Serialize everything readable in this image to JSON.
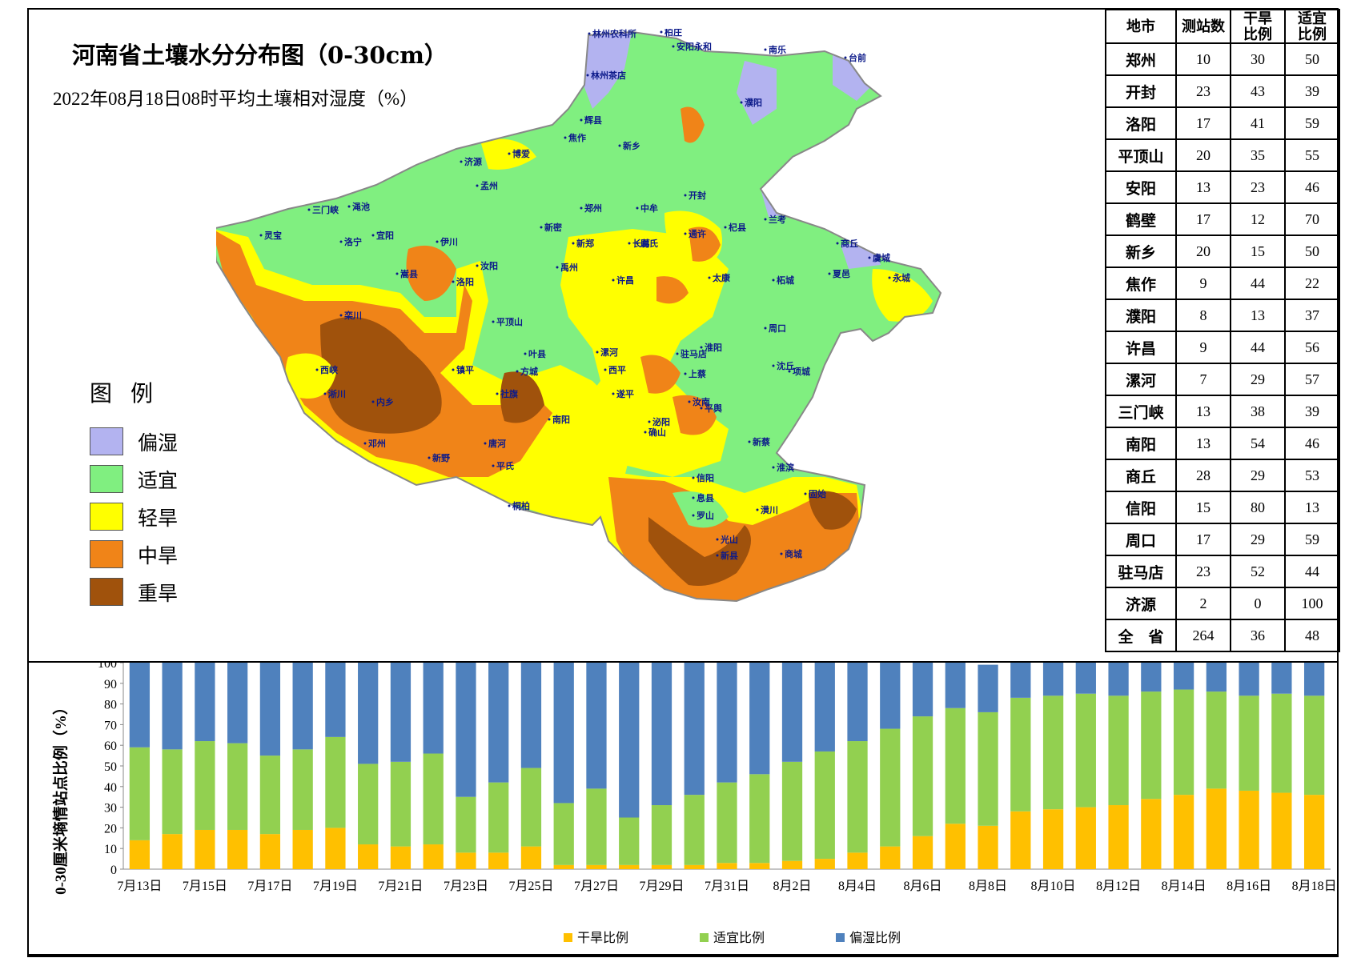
{
  "map": {
    "title": "河南省土壤水分分布图（0-30cm）",
    "subtitle": "2022年08月18日08时平均土壤相对湿度（%）"
  },
  "legend": {
    "title": "图 例",
    "items": [
      {
        "label": "偏湿",
        "color": "#b3b3f0"
      },
      {
        "label": "适宜",
        "color": "#80ef80"
      },
      {
        "label": "轻旱",
        "color": "#ffff00"
      },
      {
        "label": "中旱",
        "color": "#f08418"
      },
      {
        "label": "重旱",
        "color": "#a0520c"
      }
    ]
  },
  "places": [
    "林州农科所",
    "柏庄",
    "安阳永和",
    "南乐",
    "台前",
    "林州茶店",
    "濮阳",
    "辉县",
    "新乡",
    "焦作",
    "博爱",
    "济源",
    "孟州",
    "灵宝",
    "三门峡",
    "渑池",
    "洛宁",
    "宜阳",
    "伊川",
    "嵩县",
    "洛阳",
    "汝阳",
    "栾川",
    "西峡",
    "淅川",
    "内乡",
    "镇平",
    "邓州",
    "新野",
    "唐河",
    "南阳",
    "社旗",
    "方城",
    "叶县",
    "平顶山",
    "许昌",
    "漯河",
    "郑州",
    "新密",
    "新郑",
    "禹州",
    "长葛",
    "中牟",
    "开封",
    "尉氏",
    "通许",
    "杞县",
    "兰考",
    "商丘",
    "虞城",
    "永城",
    "夏邑",
    "柘城",
    "太康",
    "周口",
    "淮阳",
    "沈丘",
    "项城",
    "驻马店",
    "汝南",
    "平舆",
    "新蔡",
    "确山",
    "泌阳",
    "遂平",
    "西平",
    "上蔡",
    "信阳",
    "罗山",
    "光山",
    "新县",
    "商城",
    "固始",
    "潢川",
    "息县",
    "淮滨",
    "桐柏",
    "平氏"
  ],
  "table": {
    "headers": [
      "地市",
      "测站数",
      "干旱\n比例",
      "适宜\n比例"
    ],
    "rows": [
      [
        "郑州",
        "10",
        "30",
        "50"
      ],
      [
        "开封",
        "23",
        "43",
        "39"
      ],
      [
        "洛阳",
        "17",
        "41",
        "59"
      ],
      [
        "平顶山",
        "20",
        "35",
        "55"
      ],
      [
        "安阳",
        "13",
        "23",
        "46"
      ],
      [
        "鹤壁",
        "17",
        "12",
        "70"
      ],
      [
        "新乡",
        "20",
        "15",
        "50"
      ],
      [
        "焦作",
        "9",
        "44",
        "22"
      ],
      [
        "濮阳",
        "8",
        "13",
        "37"
      ],
      [
        "许昌",
        "9",
        "44",
        "56"
      ],
      [
        "漯河",
        "7",
        "29",
        "57"
      ],
      [
        "三门峡",
        "13",
        "38",
        "39"
      ],
      [
        "南阳",
        "13",
        "54",
        "46"
      ],
      [
        "商丘",
        "28",
        "29",
        "53"
      ],
      [
        "信阳",
        "15",
        "80",
        "13"
      ],
      [
        "周口",
        "17",
        "29",
        "59"
      ],
      [
        "驻马店",
        "23",
        "52",
        "44"
      ],
      [
        "济源",
        "2",
        "0",
        "100"
      ],
      [
        "全　省",
        "264",
        "36",
        "48"
      ]
    ]
  },
  "chart_data": {
    "type": "bar",
    "stacked": true,
    "ylabel": "0-30厘米墒情站点比例（%）",
    "ylim": [
      0,
      100
    ],
    "yticks": [
      0,
      10,
      20,
      30,
      40,
      50,
      60,
      70,
      80,
      90,
      100
    ],
    "xtick_labels": [
      "7月13日",
      "7月15日",
      "7月17日",
      "7月19日",
      "7月21日",
      "7月23日",
      "7月25日",
      "7月27日",
      "7月29日",
      "7月31日",
      "8月2日",
      "8月4日",
      "8月6日",
      "8月8日",
      "8月10日",
      "8月12日",
      "8月14日",
      "8月16日",
      "8月18日"
    ],
    "categories": [
      "7月13日",
      "7月14日",
      "7月15日",
      "7月16日",
      "7月17日",
      "7月18日",
      "7月19日",
      "7月20日",
      "7月21日",
      "7月22日",
      "7月23日",
      "7月24日",
      "7月25日",
      "7月26日",
      "7月27日",
      "7月28日",
      "7月29日",
      "7月30日",
      "7月31日",
      "8月1日",
      "8月2日",
      "8月3日",
      "8月4日",
      "8月5日",
      "8月6日",
      "8月7日",
      "8月8日",
      "8月9日",
      "8月10日",
      "8月11日",
      "8月12日",
      "8月13日",
      "8月14日",
      "8月15日",
      "8月16日",
      "8月17日",
      "8月18日"
    ],
    "series": [
      {
        "name": "干旱比例",
        "color": "#ffc000",
        "values": [
          14,
          17,
          19,
          19,
          17,
          19,
          20,
          12,
          11,
          12,
          8,
          8,
          11,
          2,
          2,
          2,
          2,
          2,
          3,
          3,
          4,
          5,
          8,
          11,
          16,
          22,
          21,
          28,
          29,
          30,
          31,
          34,
          36,
          39,
          38,
          37,
          36
        ]
      },
      {
        "name": "适宜比例",
        "color": "#92d050",
        "values": [
          45,
          41,
          43,
          42,
          38,
          39,
          44,
          39,
          41,
          44,
          27,
          34,
          38,
          30,
          37,
          23,
          29,
          34,
          39,
          43,
          48,
          52,
          54,
          57,
          58,
          56,
          55,
          55,
          55,
          55,
          53,
          52,
          51,
          47,
          46,
          48,
          48
        ]
      },
      {
        "name": "偏湿比例",
        "color": "#4f81bd",
        "values": [
          41,
          42,
          38,
          39,
          45,
          42,
          36,
          49,
          48,
          44,
          65,
          58,
          51,
          68,
          61,
          75,
          69,
          64,
          58,
          54,
          48,
          43,
          38,
          32,
          26,
          22,
          23,
          17,
          16,
          15,
          16,
          14,
          13,
          14,
          16,
          15,
          16
        ]
      }
    ]
  }
}
